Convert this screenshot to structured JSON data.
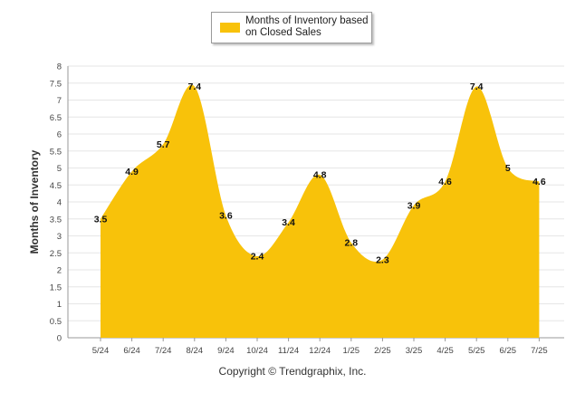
{
  "colors": {
    "area": "#F8C20A",
    "grid": "#e6e6e6",
    "axis": "#999999",
    "text": "#444444"
  },
  "copyright": "Copyright © Trendgraphix, Inc.",
  "chart_data": {
    "type": "area",
    "categories": [
      "5/24",
      "6/24",
      "7/24",
      "8/24",
      "9/24",
      "10/24",
      "11/24",
      "12/24",
      "1/25",
      "2/25",
      "3/25",
      "4/25",
      "5/25",
      "6/25",
      "7/25"
    ],
    "series": [
      {
        "name": "Months of Inventory based on Closed Sales",
        "values": [
          3.5,
          4.9,
          5.7,
          7.4,
          3.6,
          2.4,
          3.4,
          4.8,
          2.8,
          2.3,
          3.9,
          4.6,
          7.4,
          5,
          4.6
        ]
      }
    ],
    "data_labels": [
      "3.5",
      "4.9",
      "5.7",
      "7.4",
      "3.6",
      "2.4",
      "3.4",
      "4.8",
      "2.8",
      "2.3",
      "3.9",
      "4.6",
      "7.4",
      "5",
      "4.6"
    ],
    "ylabel": "Months of Inventory",
    "xlabel": "",
    "ylim": [
      0,
      8
    ],
    "yticks": [
      "0",
      "0.5",
      "1",
      "1.5",
      "2",
      "2.5",
      "3",
      "3.5",
      "4",
      "4.5",
      "5",
      "5.5",
      "6",
      "6.5",
      "7",
      "7.5",
      "8"
    ],
    "grid": true,
    "legend_position": "top-center"
  }
}
